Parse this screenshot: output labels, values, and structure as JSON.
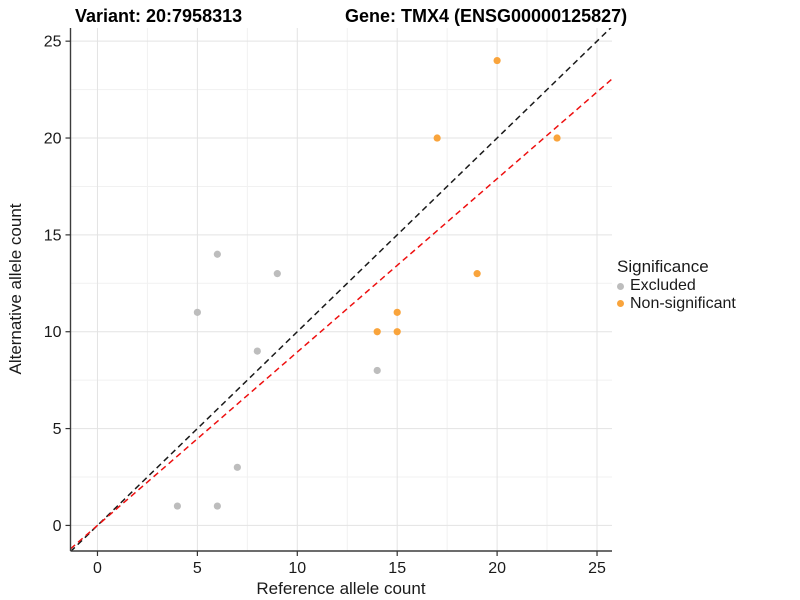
{
  "header": {
    "title_left": "Variant: 20:7958313",
    "title_right": "Gene: TMX4 (ENSG00000125827)"
  },
  "chart_data": {
    "type": "scatter",
    "xlabel": "Reference allele count",
    "ylabel": "Alternative allele count",
    "xlim": [
      -1.35,
      25.75
    ],
    "ylim": [
      -1.32,
      25.68
    ],
    "xticks": [
      0,
      5,
      10,
      15,
      20,
      25
    ],
    "yticks": [
      0,
      5,
      10,
      15,
      20,
      25
    ],
    "minor_ticks": [
      2.5,
      7.5,
      12.5,
      17.5,
      22.5
    ],
    "grid": true,
    "series": [
      {
        "name": "Excluded",
        "color": "#BDBDBD",
        "points": [
          [
            4,
            1
          ],
          [
            6,
            1
          ],
          [
            7,
            3
          ],
          [
            8,
            9
          ],
          [
            5,
            11
          ],
          [
            9,
            13
          ],
          [
            6,
            14
          ],
          [
            14,
            8
          ]
        ]
      },
      {
        "name": "Non-significant",
        "color": "#F9A43C",
        "points": [
          [
            14,
            10
          ],
          [
            15,
            10
          ],
          [
            15,
            11
          ],
          [
            19,
            13
          ],
          [
            17,
            20
          ],
          [
            23,
            20
          ],
          [
            20,
            24
          ]
        ]
      }
    ],
    "lines": [
      {
        "name": "identity-line",
        "slope": 1,
        "intercept": 0,
        "color": "#1A1A1A",
        "dash": "6,4"
      },
      {
        "name": "fit-line",
        "slope": 0.895,
        "intercept": 0,
        "color": "#EE1111",
        "dash": "6,4"
      }
    ],
    "legend": {
      "title": "Significance",
      "position": "right",
      "items": [
        {
          "label": "Excluded",
          "color": "#BDBDBD"
        },
        {
          "label": "Non-significant",
          "color": "#F9A43C"
        }
      ]
    },
    "style": {
      "major_grid_color": "#E3E3E3",
      "minor_grid_color": "#F1F1F1",
      "axis_line_color": "#3C3C3C",
      "tick_color": "#333333",
      "tick_label_color": "#1A1A1A"
    }
  }
}
